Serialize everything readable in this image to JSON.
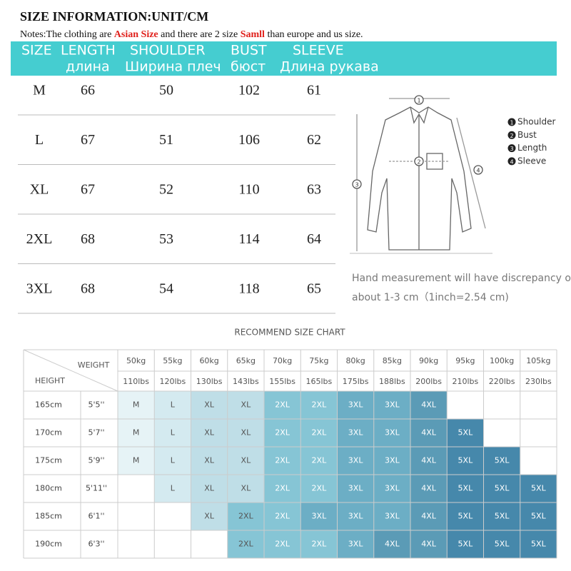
{
  "title": "SIZE INFORMATION:UNIT/CM",
  "notes": {
    "prefix": "Notes:The clothing are ",
    "highlight1": "Asian Size",
    "middle": " and there are 2 size ",
    "highlight2": "Samll",
    "suffix": " than europe and us size."
  },
  "size_table": {
    "header_en": [
      "SIZE",
      "LENGTH",
      "SHOULDER",
      "BUST",
      "SLEEVE"
    ],
    "header_ru": [
      "длина",
      "Ширина плеч",
      "бюст",
      "Длина рукава"
    ],
    "rows": [
      [
        "M",
        66,
        50,
        102,
        61
      ],
      [
        "L",
        67,
        51,
        106,
        62
      ],
      [
        "XL",
        67,
        52,
        110,
        63
      ],
      [
        "2XL",
        68,
        53,
        114,
        64
      ],
      [
        "3XL",
        68,
        54,
        118,
        65
      ]
    ]
  },
  "diagram": {
    "legend": [
      {
        "num": 1,
        "label": "Shoulder"
      },
      {
        "num": 2,
        "label": "Bust"
      },
      {
        "num": 3,
        "label": "Length"
      },
      {
        "num": 4,
        "label": "Sleeve"
      }
    ],
    "note_lines": [
      "Hand measurement will have discrepancy of",
      "about 1-3 cm（1inch=2.54 cm)"
    ]
  },
  "recommend": {
    "title": "RECOMMEND SIZE CHART",
    "weight_label": "WEIGHT",
    "height_label": "HEIGHT",
    "weights_kg": [
      "50kg",
      "55kg",
      "60kg",
      "65kg",
      "70kg",
      "75kg",
      "80kg",
      "85kg",
      "90kg",
      "95kg",
      "100kg",
      "105kg"
    ],
    "weights_lbs": [
      "110lbs",
      "120lbs",
      "130lbs",
      "143lbs",
      "155lbs",
      "165lbs",
      "175lbs",
      "188lbs",
      "200lbs",
      "210lbs",
      "220lbs",
      "230lbs"
    ],
    "rows": [
      {
        "cm": "165cm",
        "ft": "5'5''",
        "sizes": [
          "M",
          "L",
          "XL",
          "XL",
          "2XL",
          "2XL",
          "3XL",
          "3XL",
          "4XL",
          null,
          null,
          null
        ]
      },
      {
        "cm": "170cm",
        "ft": "5'7''",
        "sizes": [
          "M",
          "L",
          "XL",
          "XL",
          "2XL",
          "2XL",
          "3XL",
          "3XL",
          "4XL",
          "5XL",
          null,
          null
        ]
      },
      {
        "cm": "175cm",
        "ft": "5'9''",
        "sizes": [
          "M",
          "L",
          "XL",
          "XL",
          "2XL",
          "2XL",
          "3XL",
          "3XL",
          "4XL",
          "5XL",
          "5XL",
          null
        ]
      },
      {
        "cm": "180cm",
        "ft": "5'11''",
        "sizes": [
          null,
          "L",
          "XL",
          "XL",
          "2XL",
          "2XL",
          "3XL",
          "3XL",
          "4XL",
          "5XL",
          "5XL",
          "5XL"
        ]
      },
      {
        "cm": "185cm",
        "ft": "6'1''",
        "sizes": [
          null,
          null,
          "XL",
          "2XL",
          "2XL",
          "3XL",
          "3XL",
          "3XL",
          "4XL",
          "5XL",
          "5XL",
          "5XL"
        ]
      },
      {
        "cm": "190cm",
        "ft": "6'3''",
        "sizes": [
          null,
          null,
          null,
          "2XL",
          "2XL",
          "2XL",
          "3XL",
          "4XL",
          "4XL",
          "5XL",
          "5XL",
          "5XL"
        ]
      }
    ],
    "size_colors": {
      "M": "#e6f3f6",
      "L": "#d4eaf0",
      "XL": "#bfdee7",
      "2XL": "#86c5d5",
      "3XL": "#6caec5",
      "4XL": "#5b9bb6",
      "5XL": "#4688ab"
    }
  }
}
